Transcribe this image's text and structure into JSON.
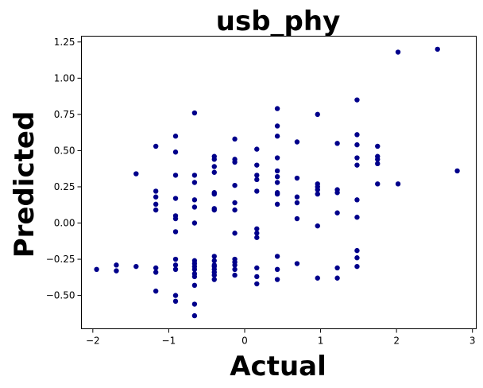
{
  "chart_data": {
    "type": "scatter",
    "title": "usb_phy",
    "xlabel": "Actual",
    "ylabel": "Predicted",
    "xlim": [
      -2.15,
      3.05
    ],
    "ylim": [
      -0.73,
      1.29
    ],
    "xticks": [
      -2,
      -1,
      0,
      1,
      2,
      3
    ],
    "xtick_labels": [
      "−2",
      "−1",
      "0",
      "1",
      "2",
      "3"
    ],
    "yticks": [
      -0.5,
      -0.25,
      0.0,
      0.25,
      0.5,
      0.75,
      1.0,
      1.25
    ],
    "ytick_labels": [
      "−0.50",
      "−0.25",
      "0.00",
      "0.25",
      "0.50",
      "0.75",
      "1.00",
      "1.25"
    ],
    "grid": false,
    "marker_color": "#00008b",
    "points": [
      [
        -1.95,
        -0.32
      ],
      [
        -1.69,
        -0.29
      ],
      [
        -1.69,
        -0.33
      ],
      [
        -1.43,
        0.34
      ],
      [
        -1.43,
        -0.3
      ],
      [
        -1.17,
        0.53
      ],
      [
        -1.17,
        0.22
      ],
      [
        -1.17,
        0.18
      ],
      [
        -1.17,
        0.13
      ],
      [
        -1.17,
        0.09
      ],
      [
        -1.17,
        -0.31
      ],
      [
        -1.17,
        -0.34
      ],
      [
        -1.17,
        -0.47
      ],
      [
        -0.91,
        0.6
      ],
      [
        -0.91,
        0.49
      ],
      [
        -0.91,
        0.33
      ],
      [
        -0.91,
        0.17
      ],
      [
        -0.91,
        0.05
      ],
      [
        -0.91,
        0.03
      ],
      [
        -0.91,
        -0.06
      ],
      [
        -0.91,
        -0.25
      ],
      [
        -0.91,
        -0.29
      ],
      [
        -0.91,
        -0.32
      ],
      [
        -0.91,
        -0.5
      ],
      [
        -0.91,
        -0.54
      ],
      [
        -0.66,
        0.76
      ],
      [
        -0.66,
        0.33
      ],
      [
        -0.66,
        0.28
      ],
      [
        -0.66,
        0.16
      ],
      [
        -0.66,
        0.11
      ],
      [
        -0.66,
        0.0
      ],
      [
        -0.66,
        -0.26
      ],
      [
        -0.66,
        -0.28
      ],
      [
        -0.66,
        -0.3
      ],
      [
        -0.66,
        -0.32
      ],
      [
        -0.66,
        -0.35
      ],
      [
        -0.66,
        -0.37
      ],
      [
        -0.66,
        -0.43
      ],
      [
        -0.66,
        -0.56
      ],
      [
        -0.66,
        -0.64
      ],
      [
        -0.4,
        0.46
      ],
      [
        -0.4,
        0.44
      ],
      [
        -0.4,
        0.39
      ],
      [
        -0.4,
        0.35
      ],
      [
        -0.4,
        0.21
      ],
      [
        -0.4,
        0.2
      ],
      [
        -0.4,
        0.1
      ],
      [
        -0.4,
        0.09
      ],
      [
        -0.4,
        -0.23
      ],
      [
        -0.4,
        -0.26
      ],
      [
        -0.4,
        -0.29
      ],
      [
        -0.4,
        -0.3
      ],
      [
        -0.4,
        -0.32
      ],
      [
        -0.4,
        -0.34
      ],
      [
        -0.4,
        -0.36
      ],
      [
        -0.4,
        -0.39
      ],
      [
        -0.13,
        0.58
      ],
      [
        -0.13,
        0.44
      ],
      [
        -0.13,
        0.42
      ],
      [
        -0.13,
        0.26
      ],
      [
        -0.13,
        0.14
      ],
      [
        -0.13,
        0.09
      ],
      [
        -0.13,
        -0.07
      ],
      [
        -0.13,
        -0.25
      ],
      [
        -0.13,
        -0.27
      ],
      [
        -0.13,
        -0.29
      ],
      [
        -0.13,
        -0.32
      ],
      [
        -0.13,
        -0.36
      ],
      [
        0.16,
        0.51
      ],
      [
        0.16,
        0.4
      ],
      [
        0.16,
        0.33
      ],
      [
        0.16,
        0.3
      ],
      [
        0.16,
        0.22
      ],
      [
        0.16,
        -0.04
      ],
      [
        0.16,
        -0.07
      ],
      [
        0.16,
        -0.1
      ],
      [
        0.16,
        -0.31
      ],
      [
        0.16,
        -0.37
      ],
      [
        0.16,
        -0.42
      ],
      [
        0.43,
        0.79
      ],
      [
        0.43,
        0.67
      ],
      [
        0.43,
        0.6
      ],
      [
        0.43,
        0.45
      ],
      [
        0.43,
        0.36
      ],
      [
        0.43,
        0.32
      ],
      [
        0.43,
        0.28
      ],
      [
        0.43,
        0.21
      ],
      [
        0.43,
        0.2
      ],
      [
        0.43,
        0.13
      ],
      [
        0.43,
        -0.23
      ],
      [
        0.43,
        -0.32
      ],
      [
        0.43,
        -0.39
      ],
      [
        0.69,
        0.56
      ],
      [
        0.69,
        0.31
      ],
      [
        0.69,
        0.18
      ],
      [
        0.69,
        0.14
      ],
      [
        0.69,
        0.03
      ],
      [
        0.69,
        -0.28
      ],
      [
        0.96,
        0.75
      ],
      [
        0.96,
        0.27
      ],
      [
        0.96,
        0.25
      ],
      [
        0.96,
        0.23
      ],
      [
        0.96,
        0.2
      ],
      [
        0.96,
        -0.02
      ],
      [
        0.96,
        -0.38
      ],
      [
        1.22,
        0.55
      ],
      [
        1.22,
        0.23
      ],
      [
        1.22,
        0.21
      ],
      [
        1.22,
        0.07
      ],
      [
        1.22,
        -0.31
      ],
      [
        1.22,
        -0.38
      ],
      [
        1.48,
        0.85
      ],
      [
        1.48,
        0.61
      ],
      [
        1.48,
        0.54
      ],
      [
        1.48,
        0.45
      ],
      [
        1.48,
        0.4
      ],
      [
        1.48,
        0.16
      ],
      [
        1.48,
        0.04
      ],
      [
        1.48,
        -0.19
      ],
      [
        1.48,
        -0.24
      ],
      [
        1.48,
        -0.3
      ],
      [
        1.75,
        0.53
      ],
      [
        1.75,
        0.46
      ],
      [
        1.75,
        0.44
      ],
      [
        1.75,
        0.41
      ],
      [
        1.75,
        0.27
      ],
      [
        2.02,
        1.18
      ],
      [
        2.02,
        0.27
      ],
      [
        2.54,
        1.2
      ],
      [
        2.8,
        0.36
      ]
    ]
  }
}
